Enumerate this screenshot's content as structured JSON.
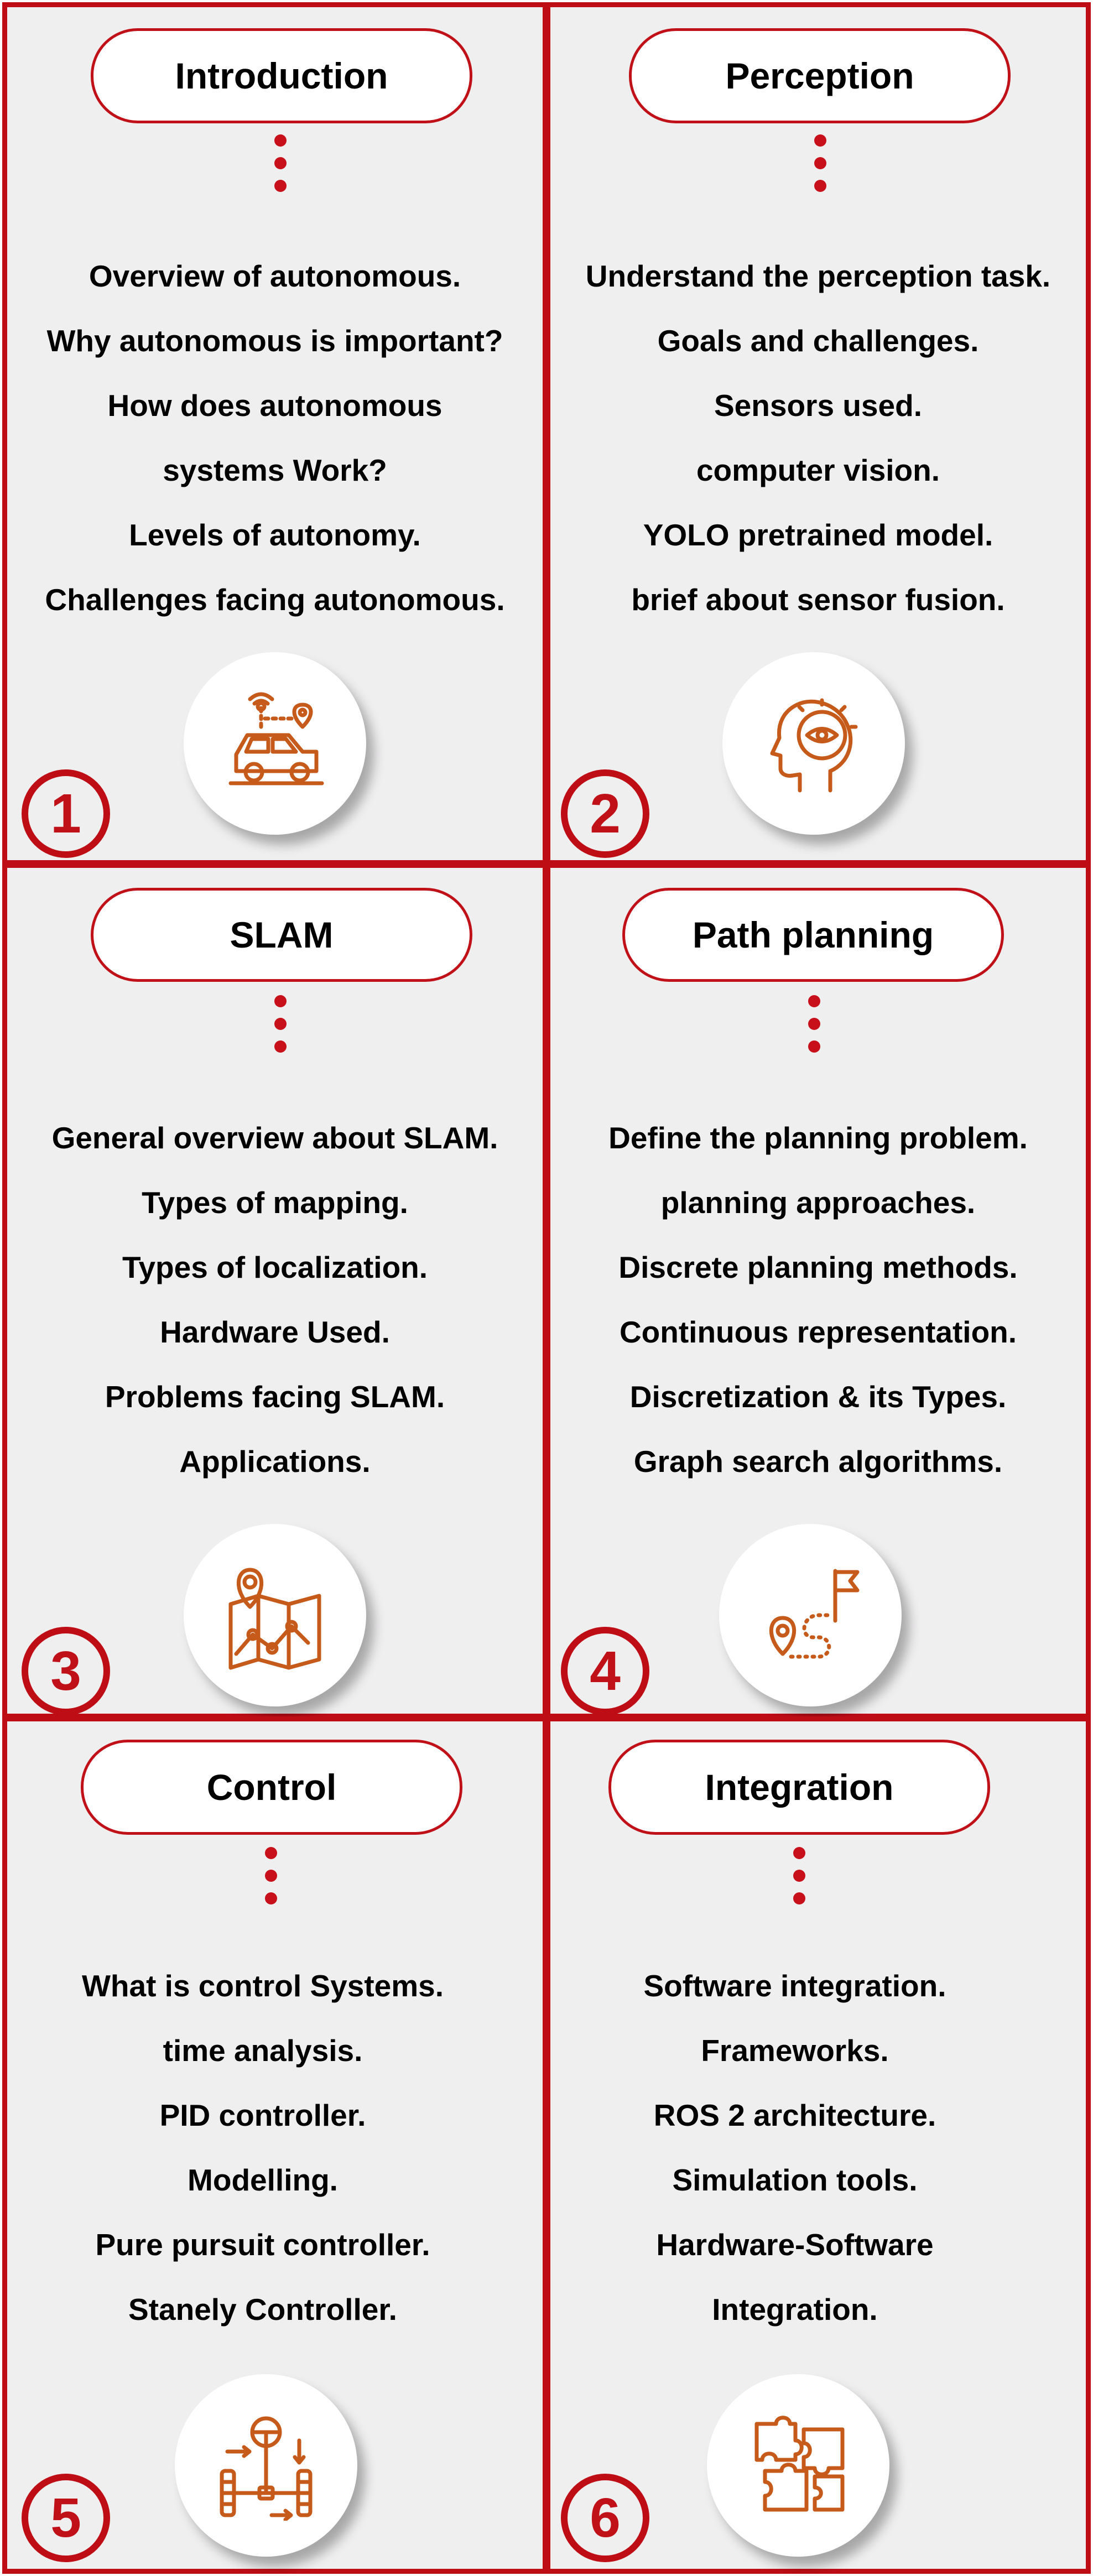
{
  "colors": {
    "accent": "#bf0d16",
    "icon": "#c65a1b",
    "panel": "#f0eff0"
  },
  "sections": [
    {
      "number": "1",
      "title": "Introduction",
      "icon": "connected-car-icon",
      "items": [
        "Overview of autonomous.",
        "Why autonomous is important?",
        "How does autonomous",
        "systems Work?",
        "Levels of autonomy.",
        "Challenges facing autonomous."
      ]
    },
    {
      "number": "2",
      "title": "Perception",
      "icon": "head-eye-icon",
      "items": [
        "Understand the perception task.",
        "Goals and challenges.",
        "Sensors used.",
        "computer vision.",
        "YOLO pretrained model.",
        "brief about sensor fusion."
      ]
    },
    {
      "number": "3",
      "title": "SLAM",
      "icon": "map-pin-icon",
      "items": [
        "General overview about SLAM.",
        "Types of mapping.",
        "Types of localization.",
        "Hardware Used.",
        "Problems facing SLAM.",
        "Applications."
      ]
    },
    {
      "number": "4",
      "title": "Path planning",
      "icon": "route-flag-icon",
      "items": [
        "Define the planning problem.",
        "planning approaches.",
        "Discrete planning methods.",
        "Continuous representation.",
        "Discretization & its Types.",
        "Graph search algorithms."
      ]
    },
    {
      "number": "5",
      "title": "Control",
      "icon": "steering-axle-icon",
      "items": [
        "What is control Systems.",
        "time analysis.",
        "PID controller.",
        "Modelling.",
        "Pure pursuit controller.",
        "Stanely Controller."
      ]
    },
    {
      "number": "6",
      "title": "Integration",
      "icon": "puzzle-icon",
      "items": [
        "Software integration.",
        "Frameworks.",
        "ROS 2 architecture.",
        "Simulation tools.",
        "Hardware-Software",
        "Integration."
      ]
    }
  ]
}
